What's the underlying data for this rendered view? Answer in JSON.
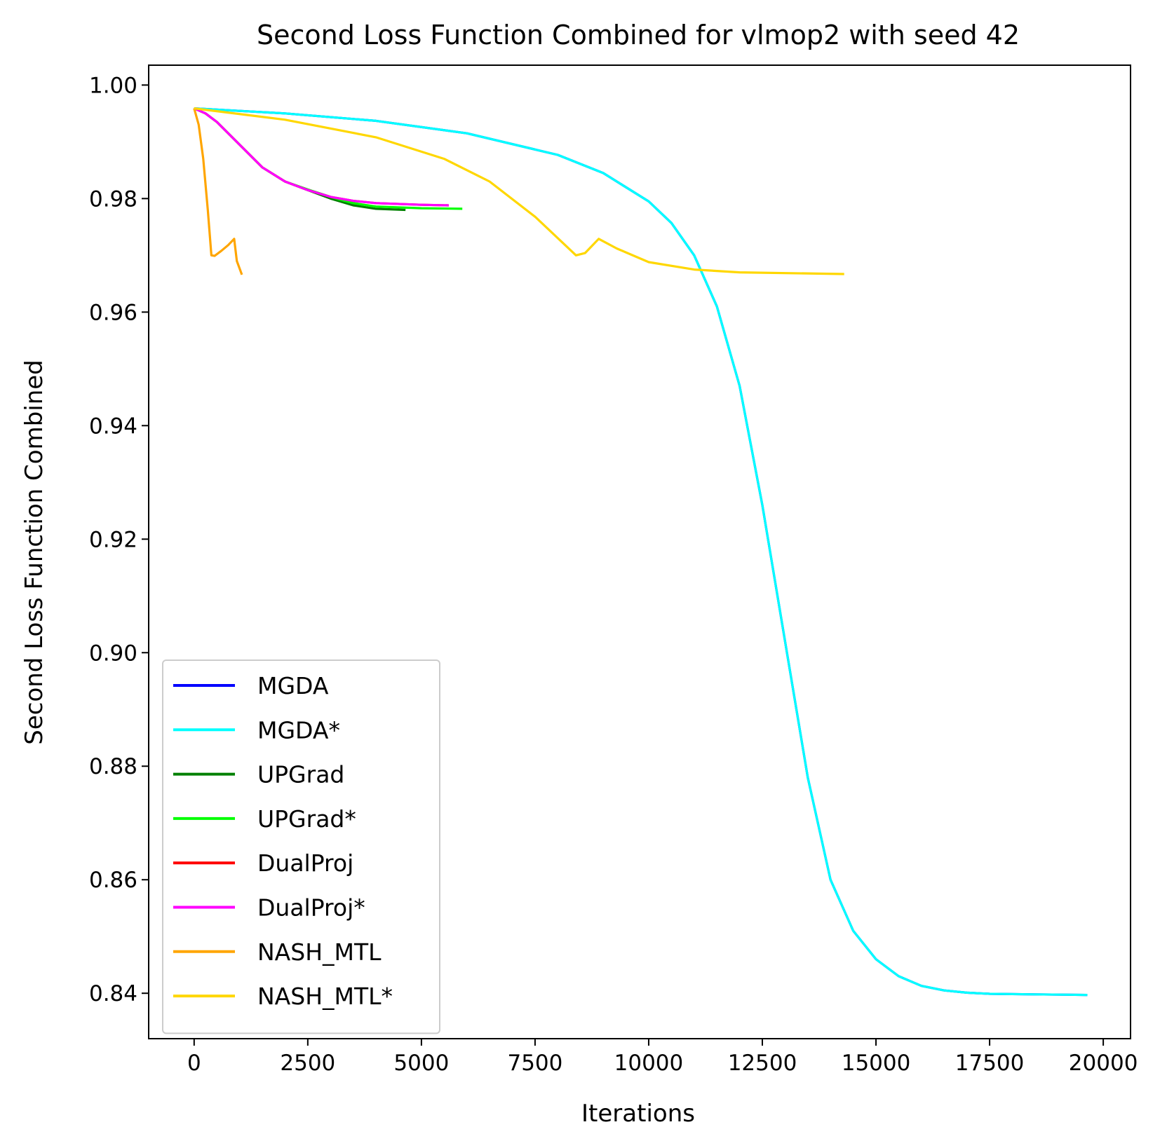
{
  "chart_data": {
    "type": "line",
    "title": "Second Loss Function Combined for vlmop2 with seed 42",
    "xlabel": "Iterations",
    "ylabel": "Second Loss Function Combined",
    "xlim": [
      -1000,
      20600
    ],
    "ylim": [
      0.832,
      1.0035
    ],
    "xticks": [
      0,
      2500,
      5000,
      7500,
      10000,
      12500,
      15000,
      17500,
      20000
    ],
    "xtick_labels": [
      "0",
      "2500",
      "5000",
      "7500",
      "10000",
      "12500",
      "15000",
      "17500",
      "20000"
    ],
    "yticks": [
      0.84,
      0.86,
      0.88,
      0.9,
      0.92,
      0.94,
      0.96,
      0.98,
      1.0
    ],
    "ytick_labels": [
      "0.84",
      "0.86",
      "0.88",
      "0.90",
      "0.92",
      "0.94",
      "0.96",
      "0.98",
      "1.00"
    ],
    "grid": false,
    "legend_position": "lower-left",
    "series": [
      {
        "name": "MGDA",
        "color": "#0000ff",
        "points": [
          [
            0,
            0.9959
          ],
          [
            2000,
            0.995
          ],
          [
            4000,
            0.9937
          ],
          [
            6000,
            0.9915
          ],
          [
            8000,
            0.9877
          ],
          [
            9000,
            0.9845
          ],
          [
            10000,
            0.9795
          ],
          [
            10500,
            0.9757
          ],
          [
            11000,
            0.97
          ],
          [
            11500,
            0.961
          ],
          [
            12000,
            0.947
          ],
          [
            12500,
            0.926
          ],
          [
            13000,
            0.902
          ],
          [
            13500,
            0.878
          ],
          [
            14000,
            0.86
          ],
          [
            14500,
            0.851
          ],
          [
            15000,
            0.846
          ],
          [
            15500,
            0.843
          ],
          [
            16000,
            0.8413
          ],
          [
            16500,
            0.8405
          ],
          [
            17000,
            0.8401
          ],
          [
            17500,
            0.8399
          ],
          [
            18500,
            0.8398
          ],
          [
            19650,
            0.8397
          ]
        ]
      },
      {
        "name": "MGDA*",
        "color": "#00ffff",
        "points": [
          [
            0,
            0.9959
          ],
          [
            2000,
            0.995
          ],
          [
            4000,
            0.9937
          ],
          [
            6000,
            0.9915
          ],
          [
            8000,
            0.9877
          ],
          [
            9000,
            0.9845
          ],
          [
            10000,
            0.9795
          ],
          [
            10500,
            0.9757
          ],
          [
            11000,
            0.97
          ],
          [
            11500,
            0.961
          ],
          [
            12000,
            0.947
          ],
          [
            12500,
            0.926
          ],
          [
            13000,
            0.902
          ],
          [
            13500,
            0.878
          ],
          [
            14000,
            0.86
          ],
          [
            14500,
            0.851
          ],
          [
            15000,
            0.846
          ],
          [
            15500,
            0.843
          ],
          [
            16000,
            0.8413
          ],
          [
            16500,
            0.8405
          ],
          [
            17000,
            0.8401
          ],
          [
            17500,
            0.8399
          ],
          [
            18500,
            0.8398
          ],
          [
            19650,
            0.8397
          ]
        ]
      },
      {
        "name": "UPGrad",
        "color": "#008000",
        "points": [
          [
            0,
            0.9959
          ],
          [
            250,
            0.995
          ],
          [
            500,
            0.9935
          ],
          [
            1000,
            0.9895
          ],
          [
            1500,
            0.9855
          ],
          [
            2000,
            0.983
          ],
          [
            2500,
            0.9815
          ],
          [
            3000,
            0.98
          ],
          [
            3500,
            0.9788
          ],
          [
            4000,
            0.9782
          ],
          [
            4650,
            0.978
          ]
        ]
      },
      {
        "name": "UPGrad*",
        "color": "#00ff00",
        "points": [
          [
            0,
            0.9959
          ],
          [
            250,
            0.995
          ],
          [
            500,
            0.9935
          ],
          [
            1000,
            0.9895
          ],
          [
            1500,
            0.9855
          ],
          [
            2000,
            0.983
          ],
          [
            2500,
            0.9816
          ],
          [
            3000,
            0.9803
          ],
          [
            3500,
            0.9792
          ],
          [
            4000,
            0.9786
          ],
          [
            5000,
            0.9783
          ],
          [
            5900,
            0.9782
          ]
        ]
      },
      {
        "name": "DualProj",
        "color": "#ff0000",
        "points": [
          [
            0,
            0.9959
          ],
          [
            250,
            0.995
          ],
          [
            500,
            0.9935
          ],
          [
            1000,
            0.9895
          ],
          [
            1500,
            0.9855
          ],
          [
            2000,
            0.983
          ],
          [
            2500,
            0.9815
          ],
          [
            3000,
            0.9803
          ],
          [
            3500,
            0.9796
          ],
          [
            4000,
            0.9792
          ],
          [
            5000,
            0.9789
          ],
          [
            5600,
            0.9788
          ]
        ]
      },
      {
        "name": "DualProj*",
        "color": "#ff00ff",
        "points": [
          [
            0,
            0.9959
          ],
          [
            250,
            0.995
          ],
          [
            500,
            0.9935
          ],
          [
            1000,
            0.9895
          ],
          [
            1500,
            0.9855
          ],
          [
            2000,
            0.983
          ],
          [
            2500,
            0.9815
          ],
          [
            3000,
            0.9803
          ],
          [
            3500,
            0.9796
          ],
          [
            4000,
            0.9792
          ],
          [
            5000,
            0.9789
          ],
          [
            5600,
            0.9788
          ]
        ]
      },
      {
        "name": "NASH_MTL",
        "color": "#ffa500",
        "points": [
          [
            0,
            0.9959
          ],
          [
            100,
            0.993
          ],
          [
            200,
            0.987
          ],
          [
            300,
            0.978
          ],
          [
            380,
            0.97
          ],
          [
            450,
            0.9699
          ],
          [
            600,
            0.9708
          ],
          [
            750,
            0.9718
          ],
          [
            880,
            0.9729
          ],
          [
            940,
            0.969
          ],
          [
            1050,
            0.9666
          ]
        ]
      },
      {
        "name": "NASH_MTL*",
        "color": "#ffd700",
        "points": [
          [
            0,
            0.9959
          ],
          [
            2000,
            0.9939
          ],
          [
            4000,
            0.9908
          ],
          [
            5500,
            0.987
          ],
          [
            6500,
            0.983
          ],
          [
            7500,
            0.9768
          ],
          [
            8400,
            0.97
          ],
          [
            8600,
            0.9704
          ],
          [
            8900,
            0.9729
          ],
          [
            9300,
            0.9712
          ],
          [
            10000,
            0.9688
          ],
          [
            11000,
            0.9675
          ],
          [
            12000,
            0.967
          ],
          [
            14300,
            0.9667
          ]
        ]
      }
    ]
  }
}
